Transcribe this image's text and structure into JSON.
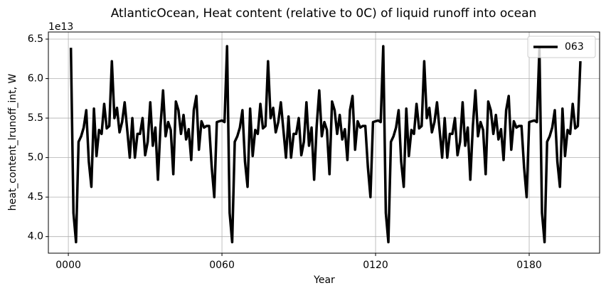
{
  "chart_data": {
    "type": "line",
    "title": "AtlanticOcean, Heat content (relative to 0C) of liquid runoff into ocean",
    "x_label": "Year",
    "y_label": "heat_content_lrunoff_int, W",
    "y_offset_label": "1e13",
    "x": [
      1,
      2,
      3,
      4,
      5,
      6,
      7,
      8,
      9,
      10,
      11,
      12,
      13,
      14,
      15,
      16,
      17,
      18,
      19,
      20,
      21,
      22,
      23,
      24,
      25,
      26,
      27,
      28,
      29,
      30,
      31,
      32,
      33,
      34,
      35,
      36,
      37,
      38,
      39,
      40,
      41,
      42,
      43,
      44,
      45,
      46,
      47,
      48,
      49,
      50,
      51,
      52,
      53,
      54,
      55,
      56,
      57,
      58,
      59,
      60,
      61,
      62,
      63,
      64,
      65,
      66,
      67,
      68,
      69,
      70,
      71,
      72,
      73,
      74,
      75,
      76,
      77,
      78,
      79,
      80,
      81,
      82,
      83,
      84,
      85,
      86,
      87,
      88,
      89,
      90,
      91,
      92,
      93,
      94,
      95,
      96,
      97,
      98,
      99,
      100,
      101,
      102,
      103,
      104,
      105,
      106,
      107,
      108,
      109,
      110,
      111,
      112,
      113,
      114,
      115,
      116,
      117,
      118,
      119,
      120,
      121,
      122,
      123,
      124,
      125,
      126,
      127,
      128,
      129,
      130,
      131,
      132,
      133,
      134,
      135,
      136,
      137,
      138,
      139,
      140,
      141,
      142,
      143,
      144,
      145,
      146,
      147,
      148,
      149,
      150,
      151,
      152,
      153,
      154,
      155,
      156,
      157,
      158,
      159,
      160,
      161,
      162,
      163,
      164,
      165,
      166,
      167,
      168,
      169,
      170,
      171,
      172,
      173,
      174,
      175,
      176,
      177,
      178,
      179,
      180,
      181,
      182,
      183,
      184,
      185,
      186,
      187,
      188,
      189,
      190,
      191,
      192,
      193,
      194,
      195,
      196,
      197,
      198,
      199,
      200
    ],
    "series": [
      {
        "name": "063",
        "color": "#000000",
        "values": [
          6.39,
          4.3,
          3.93,
          5.2,
          5.27,
          5.38,
          5.6,
          4.95,
          4.63,
          5.62,
          5.02,
          5.35,
          5.3,
          5.68,
          5.37,
          5.4,
          6.22,
          5.5,
          5.63,
          5.32,
          5.45,
          5.7,
          5.35,
          5.0,
          5.5,
          5.0,
          5.3,
          5.3,
          5.5,
          5.03,
          5.2,
          5.7,
          5.15,
          5.38,
          4.72,
          5.4,
          5.85,
          5.27,
          5.45,
          5.35,
          4.79,
          5.71,
          5.6,
          5.3,
          5.54,
          5.23,
          5.36,
          4.97,
          5.6,
          5.78,
          5.1,
          5.46,
          5.38,
          5.4,
          5.4,
          4.88,
          4.5,
          5.45,
          5.46,
          5.47,
          5.45,
          6.41,
          4.3,
          3.93,
          5.2,
          5.27,
          5.38,
          5.6,
          4.95,
          4.63,
          5.62,
          5.02,
          5.35,
          5.3,
          5.68,
          5.37,
          5.4,
          6.22,
          5.5,
          5.63,
          5.32,
          5.45,
          5.7,
          5.35,
          5.0,
          5.52,
          5.0,
          5.3,
          5.3,
          5.5,
          5.03,
          5.2,
          5.7,
          5.15,
          5.38,
          4.72,
          5.4,
          5.85,
          5.27,
          5.45,
          5.35,
          4.79,
          5.71,
          5.6,
          5.3,
          5.54,
          5.23,
          5.36,
          4.97,
          5.6,
          5.78,
          5.1,
          5.46,
          5.38,
          5.4,
          5.4,
          4.88,
          4.5,
          5.45,
          5.46,
          5.47,
          5.45,
          6.41,
          4.3,
          3.93,
          5.2,
          5.27,
          5.38,
          5.6,
          4.95,
          4.63,
          5.62,
          5.02,
          5.35,
          5.3,
          5.68,
          5.37,
          5.4,
          6.22,
          5.5,
          5.63,
          5.32,
          5.45,
          5.7,
          5.35,
          5.0,
          5.5,
          5.0,
          5.3,
          5.3,
          5.5,
          5.03,
          5.2,
          5.7,
          5.15,
          5.38,
          4.72,
          5.4,
          5.85,
          5.27,
          5.45,
          5.35,
          4.79,
          5.71,
          5.6,
          5.3,
          5.54,
          5.23,
          5.36,
          4.97,
          5.6,
          5.78,
          5.1,
          5.46,
          5.38,
          5.4,
          5.4,
          4.88,
          4.5,
          5.45,
          5.46,
          5.47,
          5.45,
          6.39,
          4.3,
          3.93,
          5.2,
          5.27,
          5.38,
          5.6,
          4.95,
          4.63,
          5.62,
          5.02,
          5.35,
          5.3,
          5.68,
          5.37,
          5.4,
          6.22
        ]
      }
    ],
    "xlim": [
      -7.8,
      207.5
    ],
    "xticks": [
      {
        "value": 0,
        "label": "0000"
      },
      {
        "value": 60,
        "label": "0060"
      },
      {
        "value": 120,
        "label": "0120"
      },
      {
        "value": 180,
        "label": "0180"
      }
    ],
    "ylim": [
      3.79,
      6.59
    ],
    "yticks": [
      {
        "value": 4,
        "label": "4.0"
      },
      {
        "value": 4.5,
        "label": "4.5"
      },
      {
        "value": 5,
        "label": "5.0"
      },
      {
        "value": 5.5,
        "label": "5.5"
      },
      {
        "value": 6,
        "label": "6.0"
      },
      {
        "value": 6.5,
        "label": "6.5"
      }
    ],
    "grid": true,
    "legend": "upper right"
  }
}
